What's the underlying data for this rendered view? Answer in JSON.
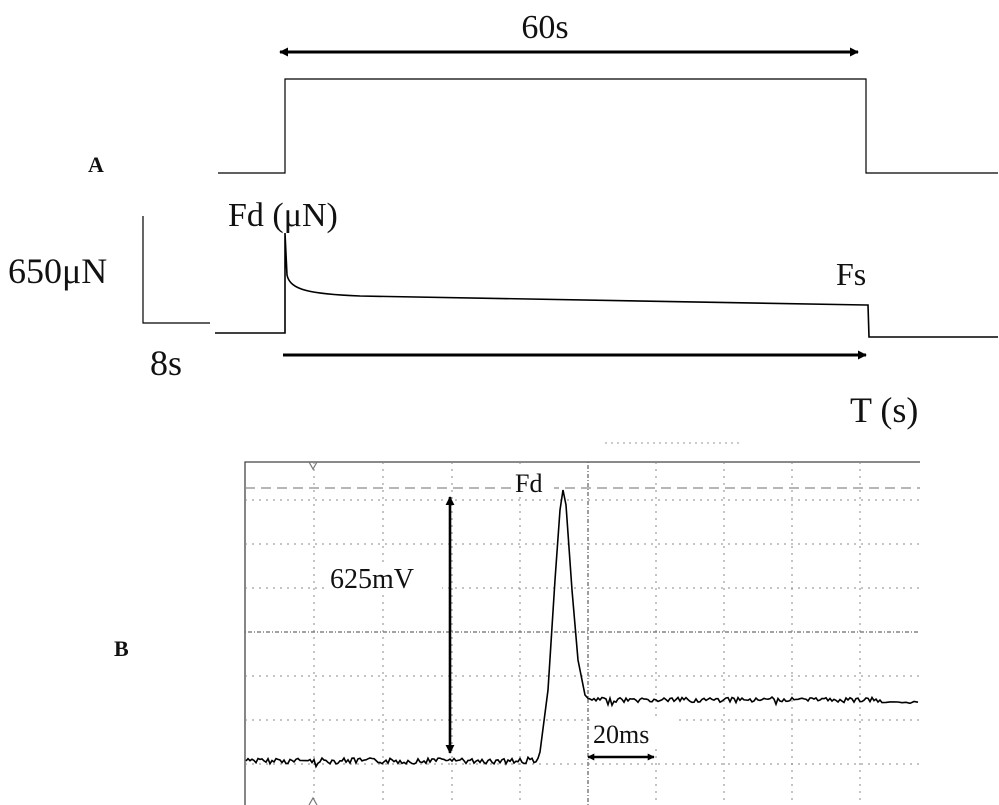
{
  "panel_a": {
    "label": "A",
    "stimulus_duration": "60s",
    "peak_force_label": "Fd (μN)",
    "force_scale": "650μN",
    "time_scale": "8s",
    "sustained_force_label": "Fs",
    "time_axis_label": "T (s)"
  },
  "panel_b": {
    "label": "B",
    "peak_label": "Fd",
    "amplitude": "625mV",
    "time_span": "20ms"
  }
}
